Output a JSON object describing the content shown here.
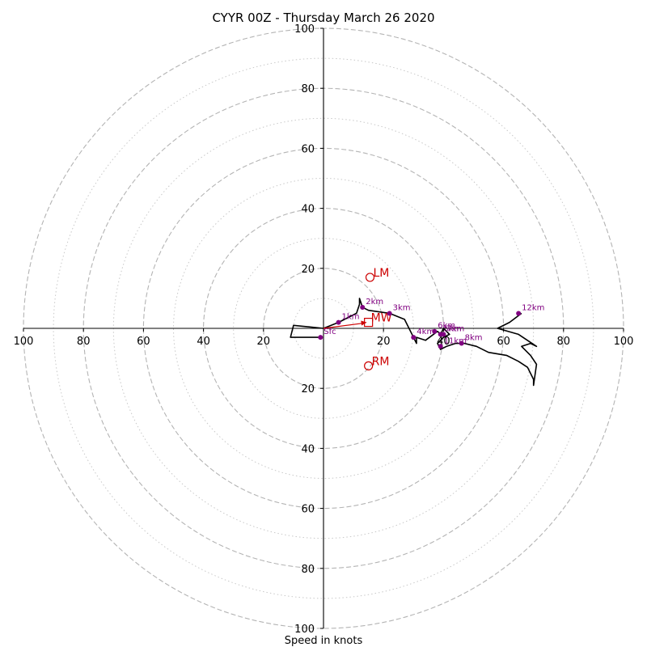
{
  "chart_data": {
    "type": "scatter",
    "title": "CYYR 00Z - Thursday March 26 2020",
    "xlabel": "Speed in knots",
    "ylabel": "",
    "xlim": [
      -100,
      100
    ],
    "ylim": [
      -100,
      100
    ],
    "ring_major": [
      20,
      40,
      60,
      80,
      100
    ],
    "ring_minor": [
      10,
      30,
      50,
      70,
      90
    ],
    "x_tick_labels": [
      "100",
      "80",
      "60",
      "40",
      "20",
      "20",
      "40",
      "60",
      "80",
      "100"
    ],
    "y_tick_labels": [
      "100",
      "80",
      "60",
      "40",
      "20",
      "20",
      "40",
      "60",
      "80",
      "100"
    ],
    "hodograph_line": {
      "color": "#000000",
      "u": [
        -1,
        -11,
        -10,
        0,
        5,
        11,
        12,
        12,
        13,
        15,
        22,
        27,
        30,
        31,
        31,
        34,
        38,
        39,
        40,
        42,
        40,
        38,
        39,
        41,
        44,
        47,
        51,
        55,
        61,
        65,
        68,
        69,
        70,
        70,
        71,
        69,
        66,
        69,
        71,
        65,
        58,
        62,
        66
      ],
      "v": [
        -3,
        -3,
        1,
        0,
        2,
        5,
        8,
        10,
        7,
        6,
        5,
        3,
        -3,
        -5,
        -3,
        -4,
        -1,
        -2,
        0,
        -2,
        -3,
        -5,
        -7,
        -6,
        -5,
        -5,
        -6,
        -8,
        -9,
        -11,
        -13,
        -15,
        -17,
        -19,
        -12,
        -9,
        -6,
        -5,
        -6,
        -2,
        0,
        2,
        5
      ]
    },
    "height_markers": {
      "color": "#800080",
      "points": [
        {
          "label": "Sfc",
          "u": -1,
          "v": -3
        },
        {
          "label": "1km",
          "u": 5,
          "v": 2
        },
        {
          "label": "2km",
          "u": 13,
          "v": 7
        },
        {
          "label": "3km",
          "u": 22,
          "v": 5
        },
        {
          "label": "4km",
          "u": 30,
          "v": -3
        },
        {
          "label": "5km",
          "u": 39,
          "v": -2
        },
        {
          "label": "6km",
          "u": 37,
          "v": -1
        },
        {
          "label": "7km",
          "u": 40,
          "v": -2
        },
        {
          "label": "8km",
          "u": 46,
          "v": -5
        },
        {
          "label": "11km",
          "u": 39,
          "v": -6
        },
        {
          "label": "12km",
          "u": 65,
          "v": 5
        }
      ]
    },
    "storm_motion": {
      "color": "#cc0000",
      "mean_wind": {
        "label": "MW",
        "u": 15,
        "v": 2
      },
      "left_mover": {
        "label": "LM",
        "u": 15.5,
        "v": 17
      },
      "right_mover": {
        "label": "RM",
        "u": 15,
        "v": -12.5
      },
      "arrow_from": {
        "u": 0,
        "v": 0
      },
      "arrow_to": {
        "u": 15,
        "v": 2
      }
    },
    "grid": true,
    "legend": "none"
  }
}
